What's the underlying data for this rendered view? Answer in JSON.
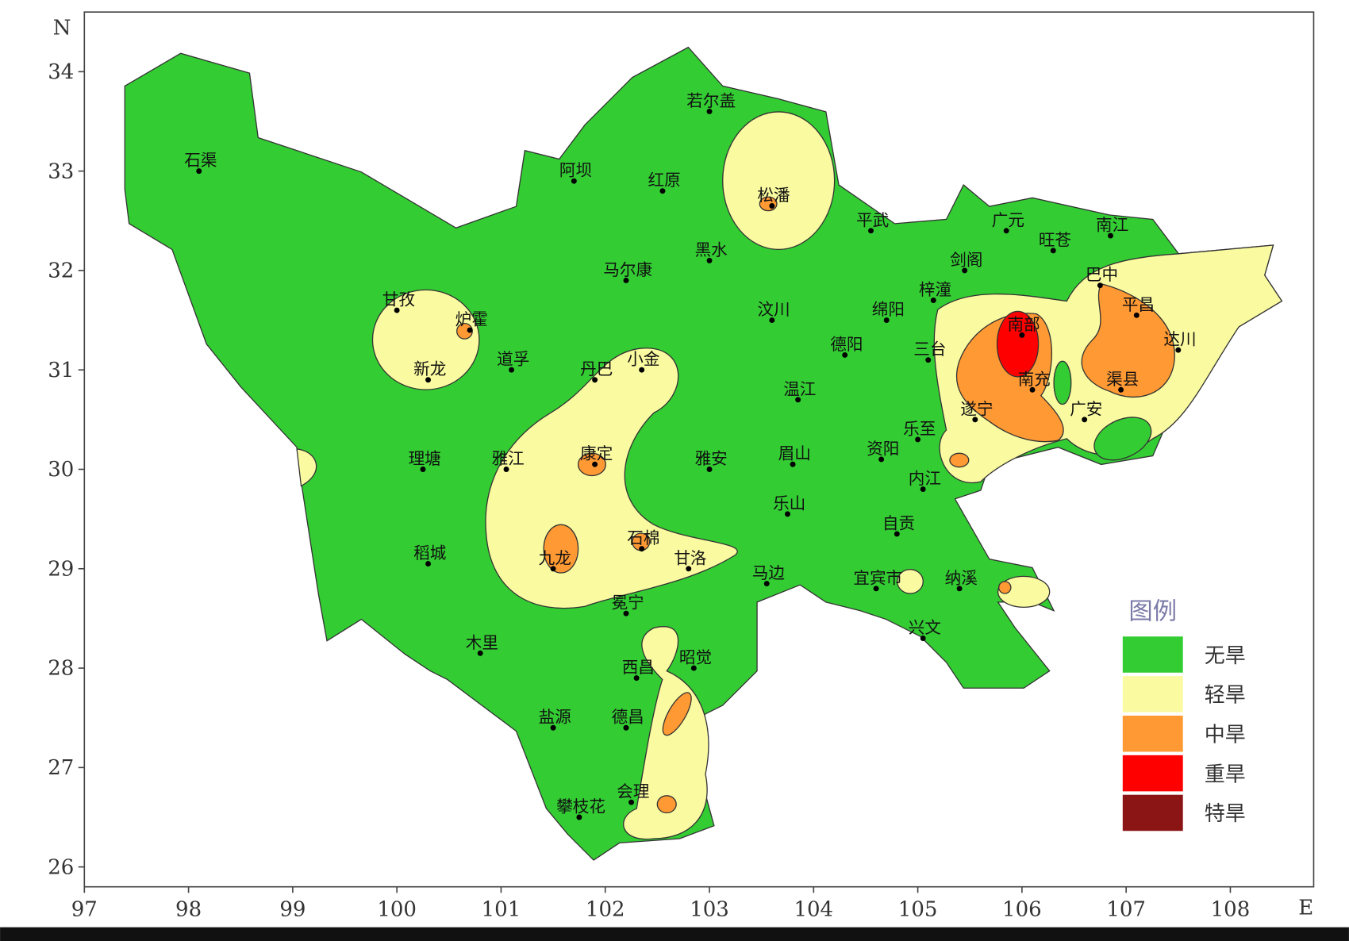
{
  "axes": {
    "north_label": "N",
    "east_label": "E",
    "xlim": [
      97,
      108.8
    ],
    "ylim": [
      25.8,
      34.6
    ],
    "xticks": [
      97,
      98,
      99,
      100,
      101,
      102,
      103,
      104,
      105,
      106,
      107,
      108
    ],
    "yticks": [
      26,
      27,
      28,
      29,
      30,
      31,
      32,
      33,
      34
    ]
  },
  "stations": [
    {
      "name": "石渠",
      "lon": 98.1,
      "lat": 33.0
    },
    {
      "name": "若尔盖",
      "lon": 103.0,
      "lat": 33.6
    },
    {
      "name": "阿坝",
      "lon": 101.7,
      "lat": 32.9
    },
    {
      "name": "红原",
      "lon": 102.55,
      "lat": 32.8
    },
    {
      "name": "松潘",
      "lon": 103.6,
      "lat": 32.65
    },
    {
      "name": "平武",
      "lon": 104.55,
      "lat": 32.4
    },
    {
      "name": "广元",
      "lon": 105.85,
      "lat": 32.4
    },
    {
      "name": "旺苍",
      "lon": 106.3,
      "lat": 32.2
    },
    {
      "name": "南江",
      "lon": 106.85,
      "lat": 32.35
    },
    {
      "name": "剑阁",
      "lon": 105.45,
      "lat": 32.0
    },
    {
      "name": "巴中",
      "lon": 106.75,
      "lat": 31.85
    },
    {
      "name": "马尔康",
      "lon": 102.2,
      "lat": 31.9
    },
    {
      "name": "黑水",
      "lon": 103.0,
      "lat": 32.1
    },
    {
      "name": "甘孜",
      "lon": 100.0,
      "lat": 31.6
    },
    {
      "name": "炉霍",
      "lon": 100.7,
      "lat": 31.4
    },
    {
      "name": "新龙",
      "lon": 100.3,
      "lat": 30.9
    },
    {
      "name": "道孚",
      "lon": 101.1,
      "lat": 31.0
    },
    {
      "name": "丹巴",
      "lon": 101.9,
      "lat": 30.9
    },
    {
      "name": "小金",
      "lon": 102.35,
      "lat": 31.0
    },
    {
      "name": "汶川",
      "lon": 103.6,
      "lat": 31.5
    },
    {
      "name": "绵阳",
      "lon": 104.7,
      "lat": 31.5
    },
    {
      "name": "梓潼",
      "lon": 105.15,
      "lat": 31.7
    },
    {
      "name": "德阳",
      "lon": 104.3,
      "lat": 31.15
    },
    {
      "name": "三台",
      "lon": 105.1,
      "lat": 31.1
    },
    {
      "name": "平昌",
      "lon": 107.1,
      "lat": 31.55
    },
    {
      "name": "达川",
      "lon": 107.5,
      "lat": 31.2
    },
    {
      "name": "南部",
      "lon": 106.0,
      "lat": 31.35
    },
    {
      "name": "南充",
      "lon": 106.1,
      "lat": 30.8
    },
    {
      "name": "渠县",
      "lon": 106.95,
      "lat": 30.8
    },
    {
      "name": "温江",
      "lon": 103.85,
      "lat": 30.7
    },
    {
      "name": "遂宁",
      "lon": 105.55,
      "lat": 30.5
    },
    {
      "name": "广安",
      "lon": 106.6,
      "lat": 30.5
    },
    {
      "name": "乐至",
      "lon": 105.0,
      "lat": 30.3
    },
    {
      "name": "理塘",
      "lon": 100.25,
      "lat": 30.0
    },
    {
      "name": "雅江",
      "lon": 101.05,
      "lat": 30.0
    },
    {
      "name": "康定",
      "lon": 101.9,
      "lat": 30.05
    },
    {
      "name": "雅安",
      "lon": 103.0,
      "lat": 30.0
    },
    {
      "name": "眉山",
      "lon": 103.8,
      "lat": 30.05
    },
    {
      "name": "资阳",
      "lon": 104.65,
      "lat": 30.1
    },
    {
      "name": "内江",
      "lon": 105.05,
      "lat": 29.8
    },
    {
      "name": "乐山",
      "lon": 103.75,
      "lat": 29.55
    },
    {
      "name": "九龙",
      "lon": 101.5,
      "lat": 29.0
    },
    {
      "name": "石棉",
      "lon": 102.35,
      "lat": 29.2
    },
    {
      "name": "甘洛",
      "lon": 102.8,
      "lat": 29.0
    },
    {
      "name": "自贡",
      "lon": 104.8,
      "lat": 29.35
    },
    {
      "name": "稻城",
      "lon": 100.3,
      "lat": 29.05
    },
    {
      "name": "马边",
      "lon": 103.55,
      "lat": 28.85
    },
    {
      "name": "宜宾市",
      "lon": 104.6,
      "lat": 28.8
    },
    {
      "name": "纳溪",
      "lon": 105.4,
      "lat": 28.8
    },
    {
      "name": "冕宁",
      "lon": 102.2,
      "lat": 28.55
    },
    {
      "name": "兴文",
      "lon": 105.05,
      "lat": 28.3
    },
    {
      "name": "木里",
      "lon": 100.8,
      "lat": 28.15
    },
    {
      "name": "西昌",
      "lon": 102.3,
      "lat": 27.9
    },
    {
      "name": "昭觉",
      "lon": 102.85,
      "lat": 28.0
    },
    {
      "name": "盐源",
      "lon": 101.5,
      "lat": 27.4
    },
    {
      "name": "德昌",
      "lon": 102.2,
      "lat": 27.4
    },
    {
      "name": "会理",
      "lon": 102.25,
      "lat": 26.65
    },
    {
      "name": "攀枝花",
      "lon": 101.75,
      "lat": 26.5
    }
  ],
  "legend": {
    "title": "图例",
    "items": [
      {
        "label": "无旱",
        "color": "#33cc33"
      },
      {
        "label": "轻旱",
        "color": "#fafaa0"
      },
      {
        "label": "中旱",
        "color": "#ff9933"
      },
      {
        "label": "重旱",
        "color": "#ff0000"
      },
      {
        "label": "特旱",
        "color": "#8b1414"
      }
    ]
  }
}
